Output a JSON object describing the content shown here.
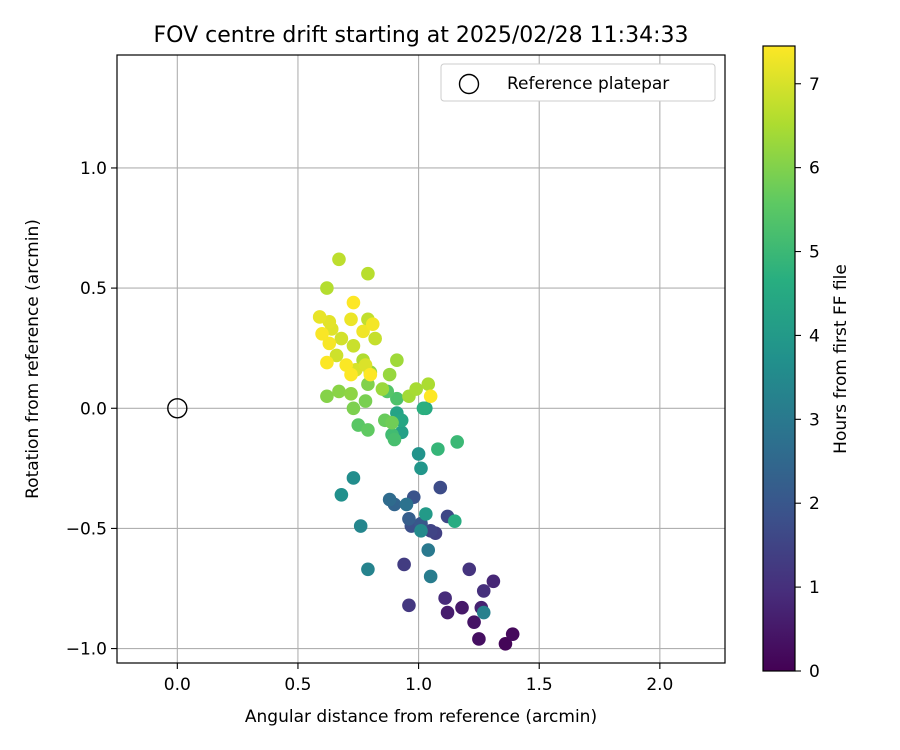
{
  "chart_data": {
    "type": "scatter",
    "title": "FOV centre drift starting at 2025/02/28 11:34:33",
    "xlabel": "Angular distance from reference (arcmin)",
    "ylabel": "Rotation from reference (arcmin)",
    "xlim": [
      -0.25,
      2.27
    ],
    "ylim": [
      -1.06,
      1.47
    ],
    "xticks": [
      0.0,
      0.5,
      1.0,
      1.5,
      2.0
    ],
    "xtick_labels": [
      "0.0",
      "0.5",
      "1.0",
      "1.5",
      "2.0"
    ],
    "yticks": [
      -1.0,
      -0.5,
      0.0,
      0.5,
      1.0
    ],
    "ytick_labels": [
      "−1.0",
      "−0.5",
      "0.0",
      "0.5",
      "1.0"
    ],
    "grid": true,
    "legend": {
      "position": "top-right",
      "entries": [
        "Reference platepar"
      ]
    },
    "reference_point": {
      "x": 0.0,
      "y": 0.0
    },
    "colorbar": {
      "label": "Hours from first FF file",
      "range": [
        0,
        7.45
      ],
      "ticks": [
        0,
        1,
        2,
        3,
        4,
        5,
        6,
        7
      ],
      "tick_labels": [
        "0",
        "1",
        "2",
        "3",
        "4",
        "5",
        "6",
        "7"
      ],
      "colormap": "viridis"
    },
    "points": [
      [
        1.36,
        -0.98,
        0.1
      ],
      [
        1.39,
        -0.94,
        0.2
      ],
      [
        1.25,
        -0.96,
        0.3
      ],
      [
        1.23,
        -0.89,
        0.4
      ],
      [
        1.18,
        -0.83,
        0.5
      ],
      [
        1.12,
        -0.85,
        0.6
      ],
      [
        1.26,
        -0.83,
        0.7
      ],
      [
        1.31,
        -0.72,
        0.8
      ],
      [
        1.11,
        -0.79,
        0.9
      ],
      [
        1.27,
        -0.76,
        1.0
      ],
      [
        1.21,
        -0.67,
        1.1
      ],
      [
        0.96,
        -0.82,
        1.2
      ],
      [
        0.94,
        -0.65,
        1.3
      ],
      [
        1.07,
        -0.52,
        1.4
      ],
      [
        1.05,
        -0.51,
        1.5
      ],
      [
        1.12,
        -0.45,
        1.6
      ],
      [
        1.09,
        -0.33,
        1.7
      ],
      [
        0.97,
        -0.49,
        1.8
      ],
      [
        0.98,
        -0.37,
        1.9
      ],
      [
        1.01,
        -0.48,
        2.0
      ],
      [
        0.96,
        -0.46,
        2.2
      ],
      [
        0.9,
        -0.4,
        2.4
      ],
      [
        0.88,
        -0.38,
        2.6
      ],
      [
        0.95,
        -0.4,
        2.8
      ],
      [
        1.04,
        -0.59,
        3.0
      ],
      [
        1.05,
        -0.7,
        3.1
      ],
      [
        1.27,
        -0.85,
        3.2
      ],
      [
        0.79,
        -0.67,
        3.3
      ],
      [
        0.76,
        -0.49,
        3.4
      ],
      [
        1.01,
        -0.51,
        3.5
      ],
      [
        0.73,
        -0.29,
        3.6
      ],
      [
        0.68,
        -0.36,
        3.7
      ],
      [
        1.0,
        -0.19,
        3.8
      ],
      [
        1.01,
        -0.25,
        3.9
      ],
      [
        1.03,
        -0.44,
        4.0
      ],
      [
        0.93,
        -0.1,
        4.2
      ],
      [
        0.91,
        -0.02,
        4.3
      ],
      [
        0.93,
        -0.05,
        4.4
      ],
      [
        1.03,
        0.0,
        4.5
      ],
      [
        1.15,
        -0.47,
        4.6
      ],
      [
        1.02,
        0.0,
        4.7
      ],
      [
        1.08,
        -0.17,
        4.9
      ],
      [
        1.16,
        -0.14,
        5.0
      ],
      [
        0.89,
        -0.11,
        5.1
      ],
      [
        0.9,
        -0.13,
        5.2
      ],
      [
        0.91,
        0.04,
        5.3
      ],
      [
        0.87,
        0.07,
        5.4
      ],
      [
        0.75,
        -0.07,
        5.5
      ],
      [
        0.79,
        -0.09,
        5.6
      ],
      [
        0.86,
        -0.05,
        5.7
      ],
      [
        0.89,
        -0.06,
        5.8
      ],
      [
        0.78,
        0.03,
        5.9
      ],
      [
        0.73,
        0.0,
        5.95
      ],
      [
        0.79,
        0.1,
        6.0
      ],
      [
        0.62,
        0.05,
        6.05
      ],
      [
        0.67,
        0.07,
        6.1
      ],
      [
        0.72,
        0.06,
        6.15
      ],
      [
        0.8,
        0.15,
        6.2
      ],
      [
        0.88,
        0.14,
        6.25
      ],
      [
        0.85,
        0.08,
        6.3
      ],
      [
        0.91,
        0.2,
        6.35
      ],
      [
        0.96,
        0.05,
        6.4
      ],
      [
        0.99,
        0.08,
        6.45
      ],
      [
        1.04,
        0.1,
        6.5
      ],
      [
        0.77,
        0.2,
        6.55
      ],
      [
        0.62,
        0.5,
        6.6
      ],
      [
        0.79,
        0.56,
        6.65
      ],
      [
        0.67,
        0.62,
        6.7
      ],
      [
        0.79,
        0.37,
        6.75
      ],
      [
        0.82,
        0.29,
        6.8
      ],
      [
        0.73,
        0.26,
        6.85
      ],
      [
        0.66,
        0.22,
        6.9
      ],
      [
        0.68,
        0.29,
        6.95
      ],
      [
        0.74,
        0.16,
        7.0
      ],
      [
        0.78,
        0.18,
        7.05
      ],
      [
        0.64,
        0.33,
        7.1
      ],
      [
        0.63,
        0.36,
        7.15
      ],
      [
        0.59,
        0.38,
        7.2
      ],
      [
        0.72,
        0.37,
        7.25
      ],
      [
        0.77,
        0.32,
        7.3
      ],
      [
        0.81,
        0.35,
        7.35
      ],
      [
        0.63,
        0.27,
        7.38
      ],
      [
        0.6,
        0.31,
        7.4
      ],
      [
        0.7,
        0.18,
        7.42
      ],
      [
        0.62,
        0.19,
        7.43
      ],
      [
        0.72,
        0.14,
        7.44
      ],
      [
        0.8,
        0.14,
        7.45
      ],
      [
        0.73,
        0.44,
        7.45
      ],
      [
        1.05,
        0.05,
        7.45
      ]
    ]
  }
}
